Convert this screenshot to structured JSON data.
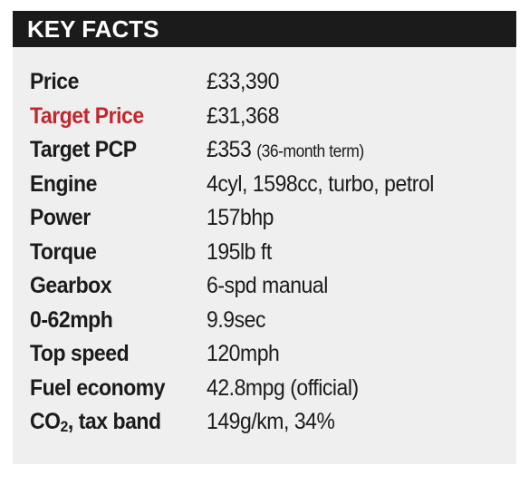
{
  "header": {
    "title": "KEY FACTS"
  },
  "colors": {
    "header_bg": "#1b1b1b",
    "panel_bg": "#efefef",
    "accent": "#c1272d"
  },
  "facts": [
    {
      "label": "Price",
      "value": "£33,390",
      "note": ""
    },
    {
      "label": "Target Price",
      "value": "£31,368",
      "note": ""
    },
    {
      "label": "Target PCP",
      "value": "£353",
      "note": "(36-month term)"
    },
    {
      "label": "Engine",
      "value": "4cyl, 1598cc, turbo, petrol",
      "note": ""
    },
    {
      "label": "Power",
      "value": "157bhp",
      "note": ""
    },
    {
      "label": "Torque",
      "value": "195lb ft",
      "note": ""
    },
    {
      "label": "Gearbox",
      "value": "6-spd manual",
      "note": ""
    },
    {
      "label": "0-62mph",
      "value": "9.9sec",
      "note": ""
    },
    {
      "label": "Top speed",
      "value": "120mph",
      "note": ""
    },
    {
      "label": "Fuel economy",
      "value": "42.8mpg (official)",
      "note": ""
    },
    {
      "label_prefix": "CO",
      "label_sub": "2",
      "label_suffix": ", tax band",
      "value": "149g/km, 34%",
      "note": ""
    }
  ]
}
